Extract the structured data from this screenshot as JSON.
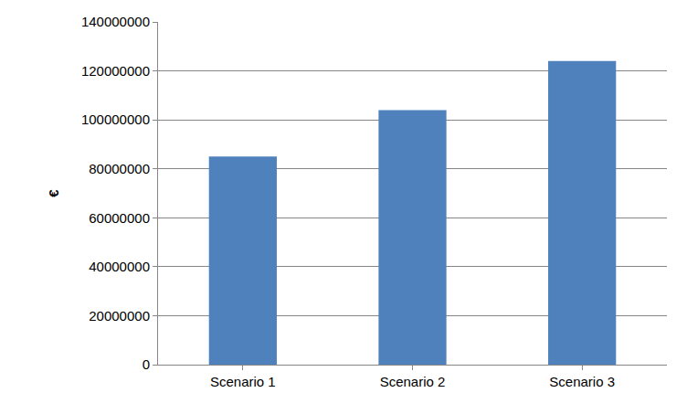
{
  "chart_data": {
    "type": "bar",
    "y_label": "€",
    "categories": [
      "Scenario 1",
      "Scenario 2",
      "Scenario 3"
    ],
    "values": [
      85000000,
      104000000,
      124000000
    ],
    "color": "#4f81bd",
    "ylim": [
      0,
      140000000
    ],
    "yticks": [
      0,
      20000000,
      40000000,
      60000000,
      80000000,
      100000000,
      120000000,
      140000000
    ],
    "grid": true
  }
}
